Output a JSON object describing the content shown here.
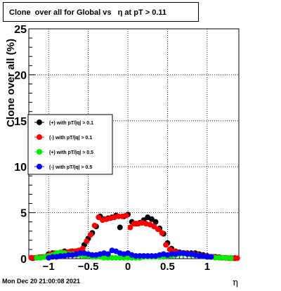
{
  "chart_data": {
    "type": "scatter",
    "title": "Clone  over all for Global vs   η at pT > 0.11",
    "xlabel": "η",
    "ylabel": "Clone  over all (%)",
    "xlim": [
      -1.25,
      1.4
    ],
    "ylim": [
      0,
      25
    ],
    "xticks": [
      -1,
      -0.5,
      0,
      0.5,
      1
    ],
    "xtick_labels": [
      "−1",
      "−0.5",
      "0",
      "0.5",
      "1"
    ],
    "yticks": [
      0,
      5,
      10,
      15,
      20,
      25
    ],
    "grid": true,
    "legend_position": "left-middle",
    "timestamp": "Mon Dec 20 21:00:08 2021",
    "series": [
      {
        "name": "(+) with pT/|q| > 0.1",
        "color": "#000000",
        "points": [
          [
            -1.2,
            0.05
          ],
          [
            -1.15,
            0.1
          ],
          [
            -1.1,
            0.15
          ],
          [
            -1.05,
            0.2
          ],
          [
            -1.0,
            0.5
          ],
          [
            -0.95,
            0.6
          ],
          [
            -0.9,
            0.4
          ],
          [
            -0.85,
            0.6
          ],
          [
            -0.8,
            0.8
          ],
          [
            -0.75,
            0.7
          ],
          [
            -0.7,
            0.8
          ],
          [
            -0.65,
            0.8
          ],
          [
            -0.6,
            0.9
          ],
          [
            -0.55,
            1.5
          ],
          [
            -0.5,
            2.2
          ],
          [
            -0.45,
            2.8
          ],
          [
            -0.4,
            3.5
          ],
          [
            -0.35,
            4.6
          ],
          [
            -0.3,
            4.3
          ],
          [
            -0.25,
            4.4
          ],
          [
            -0.2,
            4.5
          ],
          [
            -0.15,
            4.7
          ],
          [
            -0.1,
            3.4
          ],
          [
            -0.05,
            4.6
          ],
          [
            0.0,
            4.8
          ],
          [
            0.05,
            4.0
          ],
          [
            0.1,
            3.8
          ],
          [
            0.15,
            3.9
          ],
          [
            0.2,
            4.2
          ],
          [
            0.25,
            4.5
          ],
          [
            0.3,
            4.3
          ],
          [
            0.35,
            4.0
          ],
          [
            0.4,
            3.3
          ],
          [
            0.45,
            2.7
          ],
          [
            0.5,
            1.7
          ],
          [
            0.55,
            1.1
          ],
          [
            0.6,
            0.8
          ],
          [
            0.65,
            0.7
          ],
          [
            0.7,
            0.6
          ],
          [
            0.75,
            0.6
          ],
          [
            0.8,
            0.6
          ],
          [
            0.85,
            0.6
          ],
          [
            0.9,
            0.5
          ],
          [
            0.95,
            0.4
          ],
          [
            1.0,
            0.3
          ],
          [
            1.05,
            0.2
          ],
          [
            1.1,
            0.2
          ],
          [
            1.15,
            0.15
          ],
          [
            1.2,
            0.1
          ],
          [
            1.25,
            0.1
          ],
          [
            1.3,
            0.05
          ],
          [
            1.35,
            0.05
          ]
        ]
      },
      {
        "name": "(-) with pT/|q| > 0.1",
        "color": "#ff0000",
        "points": [
          [
            -1.22,
            0.1
          ],
          [
            -1.17,
            0.1
          ],
          [
            -1.12,
            0.15
          ],
          [
            -1.07,
            0.2
          ],
          [
            -1.02,
            0.3
          ],
          [
            -0.97,
            0.5
          ],
          [
            -0.92,
            0.6
          ],
          [
            -0.87,
            0.6
          ],
          [
            -0.82,
            0.7
          ],
          [
            -0.77,
            0.7
          ],
          [
            -0.72,
            0.8
          ],
          [
            -0.67,
            0.8
          ],
          [
            -0.62,
            0.9
          ],
          [
            -0.57,
            1.1
          ],
          [
            -0.52,
            1.9
          ],
          [
            -0.47,
            2.6
          ],
          [
            -0.42,
            3.6
          ],
          [
            -0.37,
            4.5
          ],
          [
            -0.32,
            4.2
          ],
          [
            -0.27,
            4.3
          ],
          [
            -0.22,
            4.4
          ],
          [
            -0.17,
            4.5
          ],
          [
            -0.12,
            4.6
          ],
          [
            -0.07,
            4.6
          ],
          [
            -0.02,
            4.7
          ],
          [
            0.03,
            3.4
          ],
          [
            0.08,
            3.8
          ],
          [
            0.13,
            3.8
          ],
          [
            0.18,
            3.9
          ],
          [
            0.23,
            3.8
          ],
          [
            0.28,
            3.7
          ],
          [
            0.33,
            3.5
          ],
          [
            0.38,
            3.2
          ],
          [
            0.43,
            2.8
          ],
          [
            0.48,
            1.5
          ],
          [
            0.53,
            1.0
          ],
          [
            0.58,
            0.8
          ],
          [
            0.63,
            0.7
          ],
          [
            0.68,
            0.6
          ],
          [
            0.73,
            0.6
          ],
          [
            0.78,
            0.5
          ],
          [
            0.83,
            0.5
          ],
          [
            0.88,
            0.4
          ],
          [
            0.93,
            0.3
          ],
          [
            0.98,
            0.3
          ],
          [
            1.03,
            0.2
          ],
          [
            1.08,
            0.2
          ],
          [
            1.13,
            0.15
          ],
          [
            1.18,
            0.1
          ],
          [
            1.23,
            0.1
          ],
          [
            1.28,
            0.05
          ],
          [
            1.33,
            0.05
          ],
          [
            1.38,
            0.05
          ]
        ]
      },
      {
        "name": "(+) with pT/|q| > 0.5",
        "color": "#00ee00",
        "points": [
          [
            -1.15,
            0.1
          ],
          [
            -1.1,
            0.1
          ],
          [
            -1.05,
            0.2
          ],
          [
            -1.0,
            0.3
          ],
          [
            -0.95,
            0.4
          ],
          [
            -0.9,
            0.6
          ],
          [
            -0.85,
            0.7
          ],
          [
            -0.8,
            0.6
          ],
          [
            -0.75,
            0.5
          ],
          [
            -0.7,
            0.5
          ],
          [
            -0.65,
            0.4
          ],
          [
            -0.6,
            0.4
          ],
          [
            -0.55,
            0.3
          ],
          [
            -0.5,
            0.3
          ],
          [
            -0.45,
            0.2
          ],
          [
            -0.4,
            0.2
          ],
          [
            -0.35,
            0.2
          ],
          [
            -0.3,
            0.1
          ],
          [
            -0.25,
            0.1
          ],
          [
            -0.2,
            0.1
          ],
          [
            -0.15,
            0.1
          ],
          [
            -0.1,
            0.1
          ],
          [
            -0.05,
            0.1
          ],
          [
            0.0,
            0.1
          ],
          [
            0.05,
            0.1
          ],
          [
            0.1,
            0.1
          ],
          [
            0.15,
            0.1
          ],
          [
            0.2,
            0.2
          ],
          [
            0.25,
            0.2
          ],
          [
            0.3,
            0.2
          ],
          [
            0.35,
            0.2
          ],
          [
            0.4,
            0.2
          ],
          [
            0.45,
            0.2
          ],
          [
            0.5,
            0.3
          ],
          [
            0.55,
            0.3
          ],
          [
            0.6,
            0.4
          ],
          [
            0.65,
            0.5
          ],
          [
            0.7,
            0.5
          ],
          [
            0.75,
            0.5
          ],
          [
            0.8,
            0.4
          ],
          [
            0.85,
            0.4
          ],
          [
            0.9,
            0.3
          ],
          [
            0.95,
            0.3
          ],
          [
            1.0,
            0.2
          ],
          [
            1.05,
            0.2
          ],
          [
            1.1,
            0.1
          ],
          [
            1.15,
            0.1
          ],
          [
            1.2,
            0.1
          ],
          [
            1.25,
            0.1
          ],
          [
            1.3,
            0.05
          ]
        ]
      },
      {
        "name": "(-) with pT/|q| > 0.5",
        "color": "#0000ff",
        "points": [
          [
            -1.0,
            0.1
          ],
          [
            -0.95,
            0.2
          ],
          [
            -0.9,
            0.2
          ],
          [
            -0.85,
            0.3
          ],
          [
            -0.8,
            0.3
          ],
          [
            -0.75,
            0.4
          ],
          [
            -0.7,
            0.4
          ],
          [
            -0.65,
            0.5
          ],
          [
            -0.6,
            0.6
          ],
          [
            -0.55,
            0.6
          ],
          [
            -0.5,
            0.5
          ],
          [
            -0.45,
            0.4
          ],
          [
            -0.4,
            0.4
          ],
          [
            -0.35,
            0.5
          ],
          [
            -0.3,
            0.6
          ],
          [
            -0.25,
            0.5
          ],
          [
            -0.2,
            0.9
          ],
          [
            -0.15,
            0.8
          ],
          [
            -0.1,
            0.6
          ],
          [
            -0.05,
            0.5
          ],
          [
            0.0,
            0.6
          ],
          [
            0.05,
            0.4
          ],
          [
            0.1,
            0.3
          ],
          [
            0.15,
            0.3
          ],
          [
            0.2,
            0.3
          ],
          [
            0.25,
            0.3
          ],
          [
            0.3,
            0.3
          ],
          [
            0.35,
            0.3
          ],
          [
            0.4,
            0.4
          ],
          [
            0.45,
            0.5
          ],
          [
            0.5,
            0.4
          ],
          [
            0.55,
            0.5
          ],
          [
            0.6,
            0.5
          ],
          [
            0.65,
            0.6
          ],
          [
            0.7,
            0.6
          ],
          [
            0.75,
            0.5
          ],
          [
            0.8,
            0.5
          ],
          [
            0.85,
            0.4
          ],
          [
            0.9,
            0.3
          ],
          [
            0.95,
            0.3
          ],
          [
            1.0,
            0.2
          ],
          [
            1.05,
            0.2
          ]
        ]
      }
    ]
  }
}
